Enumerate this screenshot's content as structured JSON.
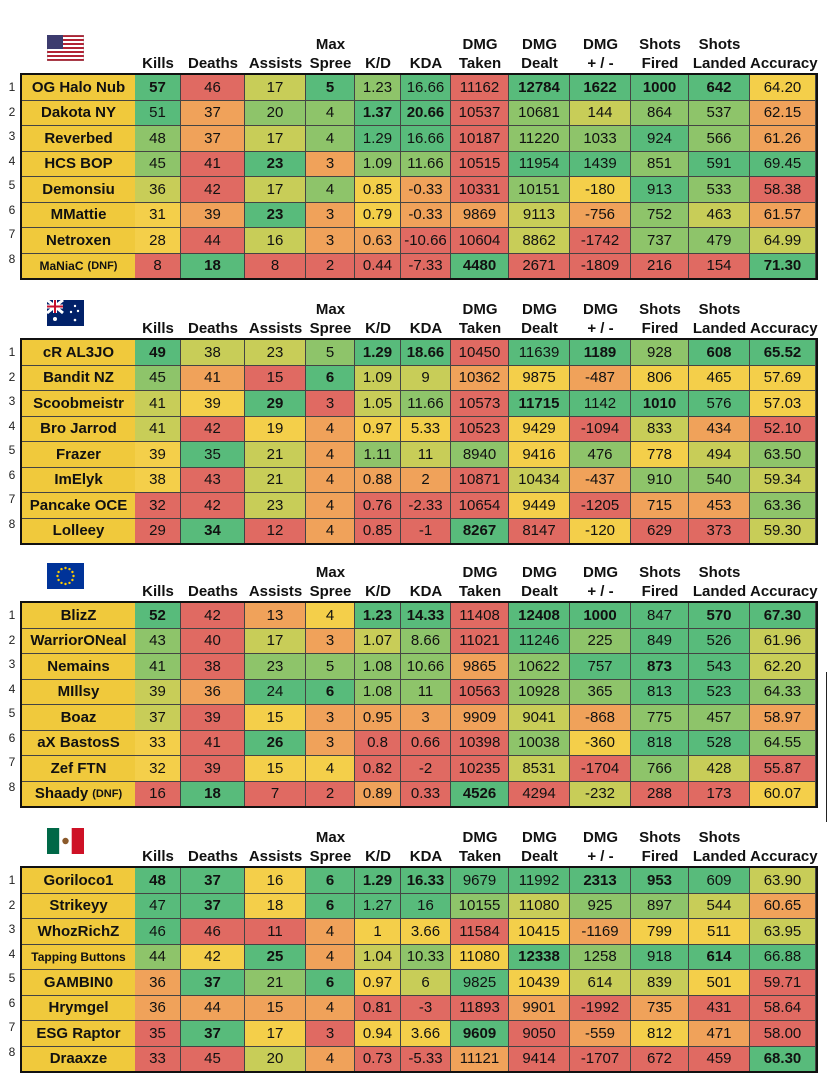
{
  "columns": [
    "Kills",
    "Deaths",
    "Assists",
    "Max Spree",
    "K/D",
    "KDA",
    "DMG Taken",
    "DMG Dealt",
    "DMG + / -",
    "Shots Fired",
    "Shots Landed",
    "Accuracy"
  ],
  "headers": [
    [
      "",
      "Kills"
    ],
    [
      "",
      "Deaths"
    ],
    [
      "",
      "Assists"
    ],
    [
      "Max",
      "Spree"
    ],
    [
      "",
      "K/D"
    ],
    [
      "",
      "KDA"
    ],
    [
      "DMG",
      "Taken"
    ],
    [
      "DMG",
      "Dealt"
    ],
    [
      "DMG",
      "+ / -"
    ],
    [
      "Shots",
      "Fired"
    ],
    [
      "Shots",
      "Landed"
    ],
    [
      "",
      "Accuracy"
    ]
  ],
  "colors": {
    "green": "#58bb7b",
    "lgreen": "#8ec46a",
    "ygreen": "#c8cd58",
    "yellow": "#f4cf4a",
    "orange": "#f0a25a",
    "red": "#e06a62"
  },
  "teams": [
    {
      "flag": "us-flag-icon",
      "rows": [
        {
          "num": "1",
          "name": "OG Halo Nub",
          "dnf": "",
          "vals": [
            "57",
            "46",
            "17",
            "5",
            "1.23",
            "16.66",
            "11162",
            "12784",
            "1622",
            "1000",
            "642",
            "64.20"
          ]
        },
        {
          "num": "2",
          "name": "Dakota NY",
          "dnf": "",
          "vals": [
            "51",
            "37",
            "20",
            "4",
            "1.37",
            "20.66",
            "10537",
            "10681",
            "144",
            "864",
            "537",
            "62.15"
          ]
        },
        {
          "num": "3",
          "name": "Reverbed",
          "dnf": "",
          "vals": [
            "48",
            "37",
            "17",
            "4",
            "1.29",
            "16.66",
            "10187",
            "11220",
            "1033",
            "924",
            "566",
            "61.26"
          ]
        },
        {
          "num": "4",
          "name": "HCS BOP",
          "dnf": "",
          "vals": [
            "45",
            "41",
            "23",
            "3",
            "1.09",
            "11.66",
            "10515",
            "11954",
            "1439",
            "851",
            "591",
            "69.45"
          ]
        },
        {
          "num": "5",
          "name": "Demonsiu",
          "dnf": "",
          "vals": [
            "36",
            "42",
            "17",
            "4",
            "0.85",
            "-0.33",
            "10331",
            "10151",
            "-180",
            "913",
            "533",
            "58.38"
          ]
        },
        {
          "num": "6",
          "name": "MMattie",
          "dnf": "",
          "vals": [
            "31",
            "39",
            "23",
            "3",
            "0.79",
            "-0.33",
            "9869",
            "9113",
            "-756",
            "752",
            "463",
            "61.57"
          ]
        },
        {
          "num": "7",
          "name": "Netroxen",
          "dnf": "",
          "vals": [
            "28",
            "44",
            "16",
            "3",
            "0.63",
            "-10.66",
            "10604",
            "8862",
            "-1742",
            "737",
            "479",
            "64.99"
          ]
        },
        {
          "num": "8",
          "name": "MaNiaC",
          "dnf": "(DNF)",
          "vals": [
            "8",
            "18",
            "8",
            "2",
            "0.44",
            "-7.33",
            "4480",
            "2671",
            "-1809",
            "216",
            "154",
            "71.30"
          ]
        }
      ]
    },
    {
      "flag": "au-flag-icon",
      "rows": [
        {
          "num": "1",
          "name": "cR AL3JO",
          "dnf": "",
          "vals": [
            "49",
            "38",
            "23",
            "5",
            "1.29",
            "18.66",
            "10450",
            "11639",
            "1189",
            "928",
            "608",
            "65.52"
          ]
        },
        {
          "num": "2",
          "name": "Bandit NZ",
          "dnf": "",
          "vals": [
            "45",
            "41",
            "15",
            "6",
            "1.09",
            "9",
            "10362",
            "9875",
            "-487",
            "806",
            "465",
            "57.69"
          ]
        },
        {
          "num": "3",
          "name": "Scoobmeistr",
          "dnf": "",
          "vals": [
            "41",
            "39",
            "29",
            "3",
            "1.05",
            "11.66",
            "10573",
            "11715",
            "1142",
            "1010",
            "576",
            "57.03"
          ]
        },
        {
          "num": "4",
          "name": "Bro Jarrod",
          "dnf": "",
          "vals": [
            "41",
            "42",
            "19",
            "4",
            "0.97",
            "5.33",
            "10523",
            "9429",
            "-1094",
            "833",
            "434",
            "52.10"
          ]
        },
        {
          "num": "5",
          "name": "Frazer",
          "dnf": "",
          "vals": [
            "39",
            "35",
            "21",
            "4",
            "1.11",
            "11",
            "8940",
            "9416",
            "476",
            "778",
            "494",
            "63.50"
          ]
        },
        {
          "num": "6",
          "name": "ImElyk",
          "dnf": "",
          "vals": [
            "38",
            "43",
            "21",
            "4",
            "0.88",
            "2",
            "10871",
            "10434",
            "-437",
            "910",
            "540",
            "59.34"
          ]
        },
        {
          "num": "7",
          "name": "Pancake OCE",
          "dnf": "",
          "vals": [
            "32",
            "42",
            "23",
            "4",
            "0.76",
            "-2.33",
            "10654",
            "9449",
            "-1205",
            "715",
            "453",
            "63.36"
          ]
        },
        {
          "num": "8",
          "name": "Lolleey",
          "dnf": "",
          "vals": [
            "29",
            "34",
            "12",
            "4",
            "0.85",
            "-1",
            "8267",
            "8147",
            "-120",
            "629",
            "373",
            "59.30"
          ]
        }
      ]
    },
    {
      "flag": "eu-flag-icon",
      "rows": [
        {
          "num": "1",
          "name": "BlizZ",
          "dnf": "",
          "vals": [
            "52",
            "42",
            "13",
            "4",
            "1.23",
            "14.33",
            "11408",
            "12408",
            "1000",
            "847",
            "570",
            "67.30"
          ]
        },
        {
          "num": "2",
          "name": "WarriorONeal",
          "dnf": "",
          "vals": [
            "43",
            "40",
            "17",
            "3",
            "1.07",
            "8.66",
            "11021",
            "11246",
            "225",
            "849",
            "526",
            "61.96"
          ]
        },
        {
          "num": "3",
          "name": "Nemains",
          "dnf": "",
          "vals": [
            "41",
            "38",
            "23",
            "5",
            "1.08",
            "10.66",
            "9865",
            "10622",
            "757",
            "873",
            "543",
            "62.20"
          ]
        },
        {
          "num": "4",
          "name": "MIllsy",
          "dnf": "",
          "vals": [
            "39",
            "36",
            "24",
            "6",
            "1.08",
            "11",
            "10563",
            "10928",
            "365",
            "813",
            "523",
            "64.33"
          ]
        },
        {
          "num": "5",
          "name": "Boaz",
          "dnf": "",
          "vals": [
            "37",
            "39",
            "15",
            "3",
            "0.95",
            "3",
            "9909",
            "9041",
            "-868",
            "775",
            "457",
            "58.97"
          ]
        },
        {
          "num": "6",
          "name": "aX BastosS",
          "dnf": "",
          "vals": [
            "33",
            "41",
            "26",
            "3",
            "0.8",
            "0.66",
            "10398",
            "10038",
            "-360",
            "818",
            "528",
            "64.55"
          ]
        },
        {
          "num": "7",
          "name": "Zef FTN",
          "dnf": "",
          "vals": [
            "32",
            "39",
            "15",
            "4",
            "0.82",
            "-2",
            "10235",
            "8531",
            "-1704",
            "766",
            "428",
            "55.87"
          ]
        },
        {
          "num": "8",
          "name": "Shaady",
          "dnf": "(DNF)",
          "vals": [
            "16",
            "18",
            "7",
            "2",
            "0.89",
            "0.33",
            "4526",
            "4294",
            "-232",
            "288",
            "173",
            "60.07"
          ]
        }
      ]
    },
    {
      "flag": "mx-flag-icon",
      "rows": [
        {
          "num": "1",
          "name": "Goriloco1",
          "dnf": "",
          "vals": [
            "48",
            "37",
            "16",
            "6",
            "1.29",
            "16.33",
            "9679",
            "11992",
            "2313",
            "953",
            "609",
            "63.90"
          ]
        },
        {
          "num": "2",
          "name": "Strikeyy",
          "dnf": "",
          "vals": [
            "47",
            "37",
            "18",
            "6",
            "1.27",
            "16",
            "10155",
            "11080",
            "925",
            "897",
            "544",
            "60.65"
          ]
        },
        {
          "num": "3",
          "name": "WhozRichZ",
          "dnf": "",
          "vals": [
            "46",
            "46",
            "11",
            "4",
            "1",
            "3.66",
            "11584",
            "10415",
            "-1169",
            "799",
            "511",
            "63.95"
          ]
        },
        {
          "num": "4",
          "name": "Tapping Buttons",
          "dnf": "",
          "vals": [
            "44",
            "42",
            "25",
            "4",
            "1.04",
            "10.33",
            "11080",
            "12338",
            "1258",
            "918",
            "614",
            "66.88"
          ]
        },
        {
          "num": "5",
          "name": "GAMBIN0",
          "dnf": "",
          "vals": [
            "36",
            "37",
            "21",
            "6",
            "0.97",
            "6",
            "9825",
            "10439",
            "614",
            "839",
            "501",
            "59.71"
          ]
        },
        {
          "num": "6",
          "name": "Hrymgel",
          "dnf": "",
          "vals": [
            "36",
            "44",
            "15",
            "4",
            "0.81",
            "-3",
            "11893",
            "9901",
            "-1992",
            "735",
            "431",
            "58.64"
          ]
        },
        {
          "num": "7",
          "name": "ESG Raptor",
          "dnf": "",
          "vals": [
            "35",
            "37",
            "17",
            "3",
            "0.94",
            "3.66",
            "9609",
            "9050",
            "-559",
            "812",
            "471",
            "58.00"
          ]
        },
        {
          "num": "8",
          "name": "Draaxze",
          "dnf": "",
          "vals": [
            "33",
            "45",
            "20",
            "4",
            "0.73",
            "-5.33",
            "11121",
            "9414",
            "-1707",
            "672",
            "459",
            "68.30"
          ]
        }
      ]
    }
  ]
}
